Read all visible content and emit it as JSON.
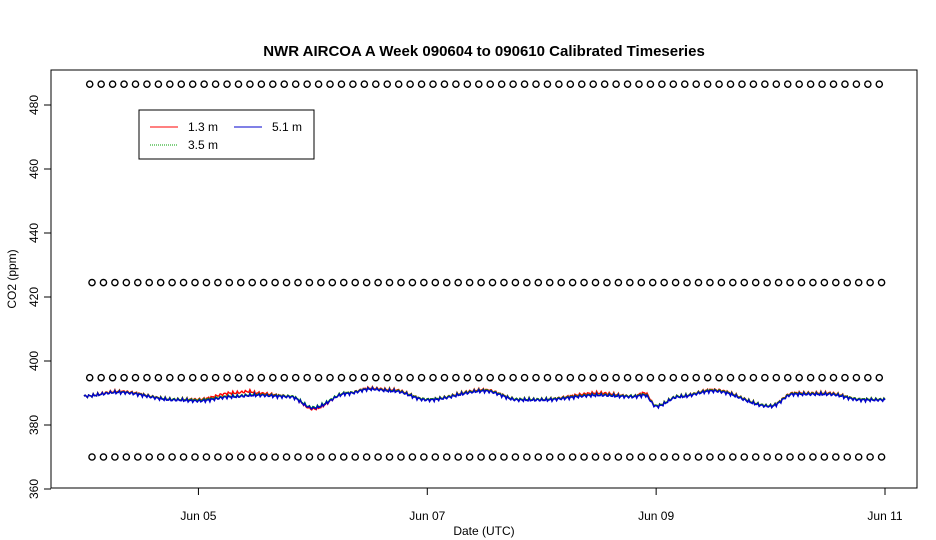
{
  "chart_data": {
    "type": "line",
    "title": "NWR AIRCOA A  Week 090604 to 090610  Calibrated Timeseries",
    "xlabel": "Date (UTC)",
    "ylabel": "CO2 (ppm)",
    "x_range_days": [
      4.0,
      11.0
    ],
    "ylim": [
      362,
      490
    ],
    "x_ticks": [
      {
        "label": "Jun 05",
        "day": 5
      },
      {
        "label": "Jun 07",
        "day": 7
      },
      {
        "label": "Jun 09",
        "day": 9
      },
      {
        "label": "Jun 11",
        "day": 11
      }
    ],
    "y_ticks": [
      360,
      380,
      400,
      420,
      440,
      460,
      480
    ],
    "legend": {
      "placement": "top-left",
      "entries": [
        {
          "name": "1.3 m",
          "color": "#ff0000"
        },
        {
          "name": "3.5 m",
          "color": "#00a000"
        },
        {
          "name": "5.1 m",
          "color": "#0000cc"
        }
      ]
    },
    "calibration_points": {
      "marker": "open-circle",
      "color": "#000000",
      "levels_ppm": [
        486.5,
        424.5,
        394.8,
        370.0
      ],
      "count_per_level": 70
    },
    "series": [
      {
        "name": "1.3 m",
        "color": "#ff0000",
        "day": [
          4.0,
          4.3,
          4.8,
          5.0,
          5.3,
          5.45,
          5.5,
          5.8,
          6.0,
          6.3,
          6.5,
          6.7,
          7.0,
          7.5,
          7.8,
          8.0,
          8.5,
          8.8,
          8.9,
          9.0,
          9.2,
          9.5,
          10.0,
          10.2,
          10.5,
          10.8,
          11.0
        ],
        "co2": [
          389,
          390.5,
          388,
          388,
          390,
          390.5,
          390,
          389,
          385,
          390,
          391.5,
          391,
          388,
          391,
          388,
          388,
          390,
          389,
          390,
          386,
          389,
          391,
          386,
          390,
          390,
          388,
          388
        ]
      },
      {
        "name": "3.5 m",
        "color": "#00a000",
        "day": [
          4.0,
          4.3,
          4.8,
          5.0,
          5.3,
          5.5,
          5.8,
          6.0,
          6.3,
          6.5,
          6.7,
          7.0,
          7.5,
          7.8,
          8.0,
          8.5,
          8.8,
          8.9,
          9.0,
          9.2,
          9.5,
          10.0,
          10.2,
          10.5,
          10.8,
          11.0
        ],
        "co2": [
          389,
          390.3,
          388,
          387.8,
          389,
          389.5,
          389,
          385.5,
          390,
          391.3,
          390.8,
          388,
          390.8,
          388,
          388,
          389.5,
          389,
          389.5,
          386,
          389,
          390.8,
          386,
          389.8,
          389.8,
          388,
          388
        ]
      },
      {
        "name": "5.1 m",
        "color": "#0000cc",
        "day": [
          4.0,
          4.3,
          4.8,
          5.0,
          5.3,
          5.5,
          5.8,
          6.0,
          6.3,
          6.5,
          6.7,
          7.0,
          7.5,
          7.8,
          8.0,
          8.5,
          8.8,
          8.9,
          9.0,
          9.2,
          9.5,
          10.0,
          10.2,
          10.5,
          10.8,
          11.0
        ],
        "co2": [
          389,
          390.2,
          387.8,
          387.5,
          388.8,
          389.3,
          388.8,
          385.3,
          389.8,
          391.2,
          390.6,
          387.8,
          390.6,
          387.8,
          387.8,
          389.3,
          388.8,
          389.3,
          385.8,
          388.8,
          390.6,
          385.8,
          389.6,
          389.6,
          387.8,
          387.8
        ]
      }
    ]
  }
}
